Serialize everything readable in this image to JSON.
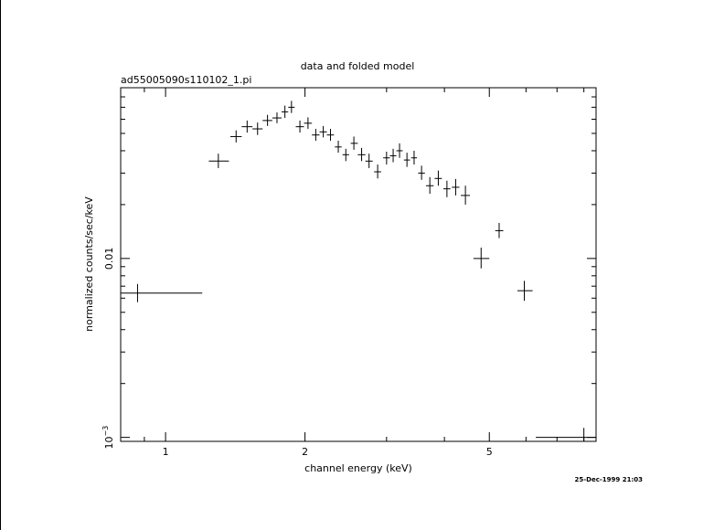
{
  "chart_data": {
    "type": "scatter",
    "title": "data and folded model",
    "subtitle": "ad55005090s110102_1.pi",
    "xlabel": "channel energy (keV)",
    "ylabel": "normalized counts/sec/keV",
    "x_scale": "log",
    "y_scale": "log",
    "xlim": [
      0.8,
      8.5
    ],
    "ylim": [
      0.00095,
      0.09
    ],
    "x_ticks": [
      {
        "value": 1,
        "label": "1"
      },
      {
        "value": 2,
        "label": "2"
      },
      {
        "value": 5,
        "label": "5"
      }
    ],
    "y_ticks": [
      {
        "value": 0.01,
        "label": "0.01",
        "kind": "plain"
      },
      {
        "value": 0.001,
        "base": "10",
        "exp": "−3",
        "kind": "power"
      }
    ],
    "timestamp": "25-Dec-1999 21:03",
    "grid": false,
    "series": [
      {
        "points": [
          {
            "x": 0.87,
            "xlo": 0.8,
            "xhi": 1.2,
            "y": 0.0064,
            "ylo": 0.0057,
            "yhi": 0.0072
          },
          {
            "x": 1.3,
            "xlo": 1.24,
            "xhi": 1.37,
            "y": 0.035,
            "ylo": 0.032,
            "yhi": 0.0385
          },
          {
            "x": 1.42,
            "xlo": 1.38,
            "xhi": 1.46,
            "y": 0.048,
            "ylo": 0.0445,
            "yhi": 0.052
          },
          {
            "x": 1.5,
            "xlo": 1.46,
            "xhi": 1.54,
            "y": 0.0545,
            "ylo": 0.0505,
            "yhi": 0.059
          },
          {
            "x": 1.58,
            "xlo": 1.54,
            "xhi": 1.62,
            "y": 0.053,
            "ylo": 0.049,
            "yhi": 0.0575
          },
          {
            "x": 1.66,
            "xlo": 1.62,
            "xhi": 1.7,
            "y": 0.059,
            "ylo": 0.055,
            "yhi": 0.0635
          },
          {
            "x": 1.74,
            "xlo": 1.7,
            "xhi": 1.78,
            "y": 0.061,
            "ylo": 0.057,
            "yhi": 0.0655
          },
          {
            "x": 1.81,
            "xlo": 1.78,
            "xhi": 1.84,
            "y": 0.066,
            "ylo": 0.061,
            "yhi": 0.0715
          },
          {
            "x": 1.87,
            "xlo": 1.84,
            "xhi": 1.9,
            "y": 0.07,
            "ylo": 0.065,
            "yhi": 0.076
          },
          {
            "x": 1.95,
            "xlo": 1.91,
            "xhi": 1.99,
            "y": 0.0545,
            "ylo": 0.0505,
            "yhi": 0.059
          },
          {
            "x": 2.03,
            "xlo": 1.99,
            "xhi": 2.07,
            "y": 0.057,
            "ylo": 0.053,
            "yhi": 0.0615
          },
          {
            "x": 2.11,
            "xlo": 2.07,
            "xhi": 2.15,
            "y": 0.049,
            "ylo": 0.0455,
            "yhi": 0.053
          },
          {
            "x": 2.19,
            "xlo": 2.15,
            "xhi": 2.23,
            "y": 0.051,
            "ylo": 0.0475,
            "yhi": 0.055
          },
          {
            "x": 2.27,
            "xlo": 2.23,
            "xhi": 2.31,
            "y": 0.049,
            "ylo": 0.0455,
            "yhi": 0.053
          },
          {
            "x": 2.36,
            "xlo": 2.32,
            "xhi": 2.4,
            "y": 0.042,
            "ylo": 0.039,
            "yhi": 0.0455
          },
          {
            "x": 2.45,
            "xlo": 2.41,
            "xhi": 2.49,
            "y": 0.038,
            "ylo": 0.035,
            "yhi": 0.041
          },
          {
            "x": 2.55,
            "xlo": 2.51,
            "xhi": 2.6,
            "y": 0.044,
            "ylo": 0.0405,
            "yhi": 0.048
          },
          {
            "x": 2.65,
            "xlo": 2.6,
            "xhi": 2.7,
            "y": 0.038,
            "ylo": 0.035,
            "yhi": 0.0415
          },
          {
            "x": 2.75,
            "xlo": 2.7,
            "xhi": 2.8,
            "y": 0.035,
            "ylo": 0.032,
            "yhi": 0.0385
          },
          {
            "x": 2.87,
            "xlo": 2.82,
            "xhi": 2.92,
            "y": 0.0305,
            "ylo": 0.028,
            "yhi": 0.0335
          },
          {
            "x": 3.0,
            "xlo": 2.95,
            "xhi": 3.05,
            "y": 0.0365,
            "ylo": 0.0335,
            "yhi": 0.0395
          },
          {
            "x": 3.1,
            "xlo": 3.05,
            "xhi": 3.15,
            "y": 0.0375,
            "ylo": 0.0345,
            "yhi": 0.041
          },
          {
            "x": 3.2,
            "xlo": 3.15,
            "xhi": 3.25,
            "y": 0.04,
            "ylo": 0.0365,
            "yhi": 0.044
          },
          {
            "x": 3.32,
            "xlo": 3.27,
            "xhi": 3.37,
            "y": 0.0355,
            "ylo": 0.0325,
            "yhi": 0.039
          },
          {
            "x": 3.44,
            "xlo": 3.39,
            "xhi": 3.49,
            "y": 0.0365,
            "ylo": 0.0335,
            "yhi": 0.04
          },
          {
            "x": 3.57,
            "xlo": 3.51,
            "xhi": 3.63,
            "y": 0.03,
            "ylo": 0.0275,
            "yhi": 0.033
          },
          {
            "x": 3.72,
            "xlo": 3.65,
            "xhi": 3.79,
            "y": 0.0255,
            "ylo": 0.023,
            "yhi": 0.0285
          },
          {
            "x": 3.88,
            "xlo": 3.81,
            "xhi": 3.95,
            "y": 0.028,
            "ylo": 0.0255,
            "yhi": 0.031
          },
          {
            "x": 4.05,
            "xlo": 3.98,
            "xhi": 4.12,
            "y": 0.0245,
            "ylo": 0.022,
            "yhi": 0.0272
          },
          {
            "x": 4.23,
            "xlo": 4.15,
            "xhi": 4.31,
            "y": 0.025,
            "ylo": 0.0225,
            "yhi": 0.0278
          },
          {
            "x": 4.44,
            "xlo": 4.34,
            "xhi": 4.54,
            "y": 0.0225,
            "ylo": 0.02,
            "yhi": 0.0255
          },
          {
            "x": 4.8,
            "xlo": 4.62,
            "xhi": 5.0,
            "y": 0.01,
            "ylo": 0.0088,
            "yhi": 0.0115
          },
          {
            "x": 5.25,
            "xlo": 5.15,
            "xhi": 5.36,
            "y": 0.0143,
            "ylo": 0.013,
            "yhi": 0.0158
          },
          {
            "x": 5.95,
            "xlo": 5.75,
            "xhi": 6.2,
            "y": 0.0066,
            "ylo": 0.0058,
            "yhi": 0.0075
          },
          {
            "x": 8.0,
            "xlo": 6.3,
            "xhi": 8.5,
            "y": 0.001,
            "ylo": 0.00092,
            "yhi": 0.00113
          }
        ]
      }
    ]
  }
}
